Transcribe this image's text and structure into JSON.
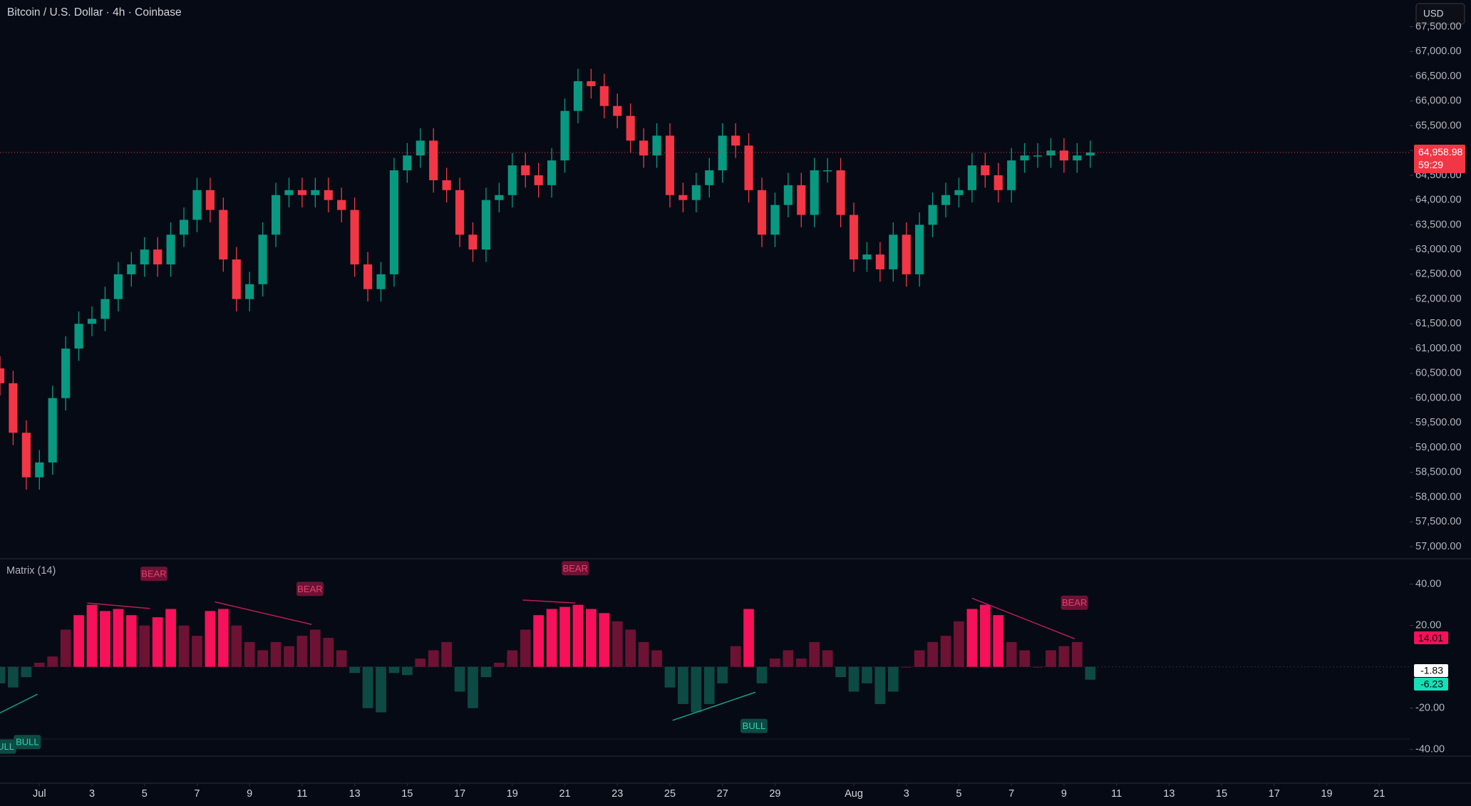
{
  "header": {
    "title": "Bitcoin / U.S. Dollar · 4h · Coinbase",
    "currency": "USD"
  },
  "chart_data": [
    {
      "type": "candlestick",
      "up_color": "#089981",
      "down_color": "#f23645",
      "x": [
        -1.5,
        -1,
        -0.5,
        0,
        0.5,
        1,
        1.5,
        2,
        2.5,
        3,
        3.5,
        4,
        4.5,
        5,
        5.5,
        6,
        6.5,
        7,
        7.5,
        8,
        8.5,
        9,
        9.5,
        10,
        10.5,
        11,
        11.5,
        12,
        12.5,
        13,
        13.5,
        14,
        14.5,
        15,
        15.5,
        16,
        16.5,
        17,
        17.5,
        18,
        18.5,
        19,
        19.5,
        20,
        20.5,
        21,
        21.5,
        22,
        22.5,
        23,
        23.5,
        24,
        24.5,
        25,
        25.5,
        26,
        26.5,
        27,
        27.5,
        28,
        28.5,
        29,
        29.5,
        30,
        30.5,
        31,
        31.5,
        32,
        32.5,
        33,
        33.5,
        34,
        34.5,
        35,
        35.5,
        36,
        36.5,
        37,
        37.5,
        38,
        38.5,
        39,
        39.5,
        40
      ],
      "open": [
        60600,
        60300,
        59300,
        58400,
        58700,
        60000,
        61000,
        61500,
        61600,
        62000,
        62500,
        62700,
        63000,
        62700,
        63300,
        63600,
        64200,
        63800,
        62800,
        62000,
        62300,
        63300,
        64100,
        64200,
        64100,
        64200,
        64000,
        63800,
        62700,
        62200,
        62500,
        64600,
        64900,
        65200,
        64400,
        64200,
        63300,
        63000,
        64000,
        64100,
        64700,
        64500,
        64300,
        64800,
        65800,
        66400,
        66300,
        65900,
        65700,
        65200,
        64900,
        65300,
        64100,
        64000,
        64300,
        64600,
        65300,
        65100,
        64200,
        63300,
        63900,
        64300,
        63700,
        64600,
        64600,
        63700,
        62800,
        62900,
        62600,
        63300,
        62500,
        63500,
        63900,
        64100,
        64200,
        64700,
        64500,
        64200,
        64800,
        64900,
        64900,
        65000,
        64800,
        64900
      ],
      "high": [
        60850,
        60550,
        59550,
        58950,
        60250,
        61250,
        61750,
        61850,
        62250,
        62750,
        62950,
        63250,
        63250,
        63550,
        63850,
        64450,
        64450,
        64050,
        63050,
        62550,
        63550,
        64350,
        64450,
        64450,
        64450,
        64450,
        64250,
        64050,
        62950,
        62750,
        64850,
        65150,
        65450,
        65450,
        64650,
        64450,
        63550,
        64250,
        64350,
        64950,
        64950,
        64750,
        65050,
        66050,
        66650,
        66650,
        66550,
        66150,
        65950,
        65450,
        65550,
        65550,
        64350,
        64550,
        64850,
        65550,
        65550,
        65350,
        64450,
        64150,
        64550,
        64550,
        64850,
        64850,
        64850,
        63950,
        63150,
        63150,
        63550,
        63550,
        63750,
        64150,
        64350,
        64450,
        64950,
        64950,
        64750,
        65050,
        65150,
        65150,
        65250,
        65250,
        65150,
        65200
      ],
      "low": [
        60050,
        59050,
        58150,
        58150,
        58450,
        59750,
        60750,
        61250,
        61350,
        61750,
        62250,
        62450,
        62450,
        62450,
        63050,
        63350,
        63550,
        62550,
        61750,
        61750,
        62050,
        63050,
        63850,
        63850,
        63850,
        63750,
        63550,
        62450,
        61950,
        61950,
        62250,
        64350,
        64650,
        64150,
        63950,
        63050,
        62750,
        62750,
        63750,
        63850,
        64250,
        64050,
        64050,
        64550,
        65550,
        66050,
        65650,
        65450,
        64950,
        64650,
        64650,
        63850,
        63750,
        63750,
        64050,
        64350,
        64850,
        63950,
        63050,
        63050,
        63650,
        63450,
        63450,
        64350,
        63450,
        62550,
        62550,
        62350,
        62350,
        62250,
        62250,
        63250,
        63650,
        63850,
        63950,
        64250,
        63950,
        63950,
        64550,
        64650,
        64650,
        64550,
        64550,
        64650
      ],
      "close": [
        60300,
        59300,
        58400,
        58700,
        60000,
        61000,
        61500,
        61600,
        62000,
        62500,
        62700,
        63000,
        62700,
        63300,
        63600,
        64200,
        63800,
        62800,
        62000,
        62300,
        63300,
        64100,
        64200,
        64100,
        64200,
        64000,
        63800,
        62700,
        62200,
        62500,
        64600,
        64900,
        65200,
        64400,
        64200,
        63300,
        63000,
        64000,
        64100,
        64700,
        64500,
        64300,
        64800,
        65800,
        66400,
        66300,
        65900,
        65700,
        65200,
        64900,
        65300,
        64100,
        64000,
        64300,
        64600,
        65300,
        65100,
        64200,
        63300,
        63900,
        64300,
        63700,
        64600,
        64600,
        63700,
        62800,
        62900,
        62600,
        63300,
        62500,
        63500,
        63900,
        64100,
        64200,
        64700,
        64500,
        64200,
        64800,
        64900,
        64900,
        65000,
        64800,
        64900,
        64958.98
      ],
      "xlim": [
        -1.5,
        52.16
      ],
      "xticks": [
        {
          "value": 0,
          "label": "Jul"
        },
        {
          "value": 2,
          "label": "3"
        },
        {
          "value": 4,
          "label": "5"
        },
        {
          "value": 6,
          "label": "7"
        },
        {
          "value": 8,
          "label": "9"
        },
        {
          "value": 10,
          "label": "11"
        },
        {
          "value": 12,
          "label": "13"
        },
        {
          "value": 14,
          "label": "15"
        },
        {
          "value": 16,
          "label": "17"
        },
        {
          "value": 18,
          "label": "19"
        },
        {
          "value": 20,
          "label": "21"
        },
        {
          "value": 22,
          "label": "23"
        },
        {
          "value": 24,
          "label": "25"
        },
        {
          "value": 26,
          "label": "27"
        },
        {
          "value": 28,
          "label": "29"
        },
        {
          "value": 31,
          "label": "Aug"
        },
        {
          "value": 33,
          "label": "3"
        },
        {
          "value": 35,
          "label": "5"
        },
        {
          "value": 37,
          "label": "7"
        },
        {
          "value": 39,
          "label": "9"
        },
        {
          "value": 41,
          "label": "11"
        },
        {
          "value": 43,
          "label": "13"
        },
        {
          "value": 45,
          "label": "15"
        },
        {
          "value": 47,
          "label": "17"
        },
        {
          "value": 49,
          "label": "19"
        },
        {
          "value": 51,
          "label": "21"
        }
      ],
      "ylim": [
        56770,
        68040
      ],
      "yticks": [
        {
          "value": 57000,
          "label": "57,000.00"
        },
        {
          "value": 57500,
          "label": "57,500.00"
        },
        {
          "value": 58000,
          "label": "58,000.00"
        },
        {
          "value": 58500,
          "label": "58,500.00"
        },
        {
          "value": 59000,
          "label": "59,000.00"
        },
        {
          "value": 59500,
          "label": "59,500.00"
        },
        {
          "value": 60000,
          "label": "60,000.00"
        },
        {
          "value": 60500,
          "label": "60,500.00"
        },
        {
          "value": 61000,
          "label": "61,000.00"
        },
        {
          "value": 61500,
          "label": "61,500.00"
        },
        {
          "value": 62000,
          "label": "62,000.00"
        },
        {
          "value": 62500,
          "label": "62,500.00"
        },
        {
          "value": 63000,
          "label": "63,000.00"
        },
        {
          "value": 63500,
          "label": "63,500.00"
        },
        {
          "value": 64000,
          "label": "64,000.00"
        },
        {
          "value": 64500,
          "label": "64,500.00"
        },
        {
          "value": 65000,
          "label": "65,000.00"
        },
        {
          "value": 65500,
          "label": "65,500.00"
        },
        {
          "value": 66000,
          "label": "66,000.00"
        },
        {
          "value": 66500,
          "label": "66,500.00"
        },
        {
          "value": 67000,
          "label": "67,000.00"
        },
        {
          "value": 67500,
          "label": "67,500.00"
        }
      ],
      "last_price": {
        "value": 64958.98,
        "label": "64,958.98",
        "color": "#f23645"
      },
      "countdown": "59:29"
    },
    {
      "type": "histogram",
      "title": "Matrix (14)",
      "values": [
        -8,
        -10,
        -5,
        2,
        5,
        18,
        25,
        30,
        27,
        28,
        25,
        20,
        24,
        28,
        20,
        15,
        27,
        28,
        20,
        12,
        8,
        12,
        10,
        15,
        18,
        14,
        8,
        -3,
        -20,
        -22,
        -3,
        -4,
        4,
        8,
        12,
        -12,
        -20,
        -5,
        2,
        8,
        18,
        25,
        28,
        29,
        30,
        28,
        26,
        22,
        18,
        12,
        8,
        -10,
        -18,
        -22,
        -18,
        -8,
        10,
        28,
        -8,
        4,
        8,
        4,
        12,
        8,
        -5,
        -12,
        -8,
        -18,
        -12,
        0,
        8,
        12,
        15,
        22,
        28,
        30,
        25,
        12,
        8,
        0,
        8,
        10,
        12,
        -6.23
      ],
      "colors": {
        "pos_strong": "#f7105a",
        "pos_weak": "#6e1234",
        "neg_strong": "#14c9a6",
        "neg_weak": "#0d4a44"
      },
      "strong_at": 24,
      "ylim": [
        -43.2,
        52.3
      ],
      "yticks": [
        {
          "value": 40,
          "label": "40.00"
        },
        {
          "value": 20,
          "label": "20.00"
        },
        {
          "value": -20,
          "label": "-20.00"
        },
        {
          "value": -40,
          "label": "-40.00"
        }
      ],
      "tags": [
        {
          "value": 14.01,
          "label": "14.01",
          "color": "#f7105a"
        },
        {
          "value": -1.83,
          "label": "-1.83",
          "color": "#ffffff"
        },
        {
          "value": -6.23,
          "label": "-6.23",
          "color": "#14e0b8"
        }
      ],
      "divergences": [
        {
          "x": [
            1.82,
            4.2
          ],
          "y": [
            30.9,
            28.2
          ],
          "color": "#b81e55"
        },
        {
          "x": [
            6.68,
            10.36
          ],
          "y": [
            31.4,
            20.5
          ],
          "color": "#b81e55"
        },
        {
          "x": [
            18.4,
            20.4
          ],
          "y": [
            32.3,
            30.9
          ],
          "color": "#b81e55"
        },
        {
          "x": [
            35.5,
            39.4
          ],
          "y": [
            33.2,
            13.6
          ],
          "color": "#b81e55"
        },
        {
          "x": [
            24.1,
            27.25
          ],
          "y": [
            -25.9,
            -12.3
          ],
          "color": "#14a08a"
        },
        {
          "x": [
            -1.5,
            -0.07
          ],
          "y": [
            -22.3,
            -13.2
          ],
          "color": "#14a08a"
        }
      ],
      "annotations": [
        {
          "text": "BEAR",
          "x": 4.36,
          "y": 45,
          "color": "#6e1234"
        },
        {
          "text": "BEAR",
          "x": 10.3,
          "y": 37.7,
          "color": "#6e1234"
        },
        {
          "text": "BEAR",
          "x": 20.4,
          "y": 47.7,
          "color": "#6e1234"
        },
        {
          "text": "BEAR",
          "x": 39.4,
          "y": 31,
          "color": "#6e1234"
        },
        {
          "text": "BULL",
          "x": 27.2,
          "y": -28.6,
          "color": "#0d4a44"
        },
        {
          "text": "BULL",
          "x": -0.46,
          "y": -36.4,
          "color": "#0d4a44"
        },
        {
          "text": "BULL",
          "x": -1.4,
          "y": -38.6,
          "color": "#0d4a44"
        }
      ]
    }
  ]
}
